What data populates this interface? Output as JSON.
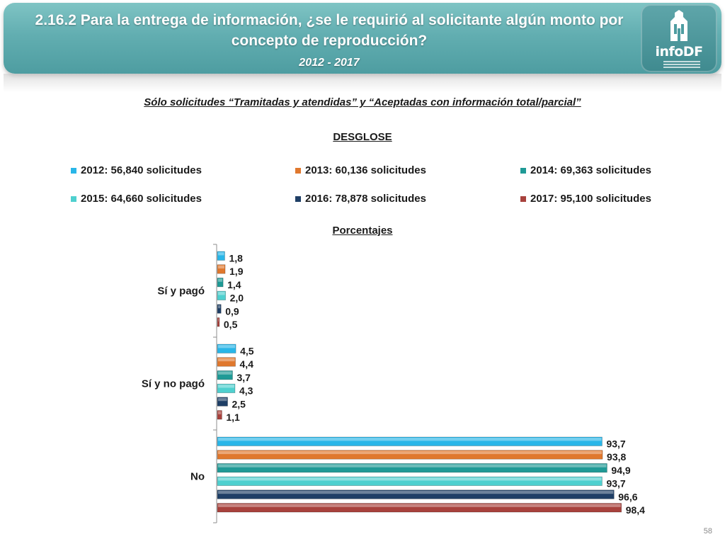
{
  "header": {
    "title": "2.16.2 Para la entrega de información, ¿se le requirió al solicitante algún monto por concepto de reproducción?",
    "period": "2012 - 2017",
    "logo_text": "infoDF"
  },
  "subtitle": "Sólo solicitudes “Tramitadas y atendidas” y “Aceptadas con información total/parcial”",
  "section_label": "DESGLOSE",
  "page_number": "58",
  "colors": {
    "header": "#62aeb1",
    "series": [
      "#29b6e8",
      "#e0782e",
      "#1f9a96",
      "#4fd0cf",
      "#1f3f66",
      "#a8423d"
    ]
  },
  "chart_data": {
    "type": "bar",
    "orientation": "horizontal",
    "units_label": "Porcentajes",
    "categories": [
      "Sí y pagó",
      "Sí y no pagó",
      "No"
    ],
    "series": [
      {
        "name": "2012: 56,840 solicitudes",
        "values": [
          1.8,
          4.5,
          93.7
        ],
        "labels": [
          "1,8",
          "4,5",
          "93,7"
        ]
      },
      {
        "name": "2013: 60,136 solicitudes",
        "values": [
          1.9,
          4.4,
          93.8
        ],
        "labels": [
          "1,9",
          "4,4",
          "93,8"
        ]
      },
      {
        "name": "2014: 69,363 solicitudes",
        "values": [
          1.4,
          3.7,
          94.9
        ],
        "labels": [
          "1,4",
          "3,7",
          "94,9"
        ]
      },
      {
        "name": "2015: 64,660 solicitudes",
        "values": [
          2.0,
          4.3,
          93.7
        ],
        "labels": [
          "2,0",
          "4,3",
          "93,7"
        ]
      },
      {
        "name": "2016: 78,878 solicitudes",
        "values": [
          0.9,
          2.5,
          96.6
        ],
        "labels": [
          "0,9",
          "2,5",
          "96,6"
        ]
      },
      {
        "name": "2017: 95,100 solicitudes",
        "values": [
          0.5,
          1.1,
          98.4
        ],
        "labels": [
          "0,5",
          "1,1",
          "98,4"
        ]
      }
    ],
    "xlim": [
      0,
      100
    ],
    "legend_position": "top",
    "grid": false
  }
}
